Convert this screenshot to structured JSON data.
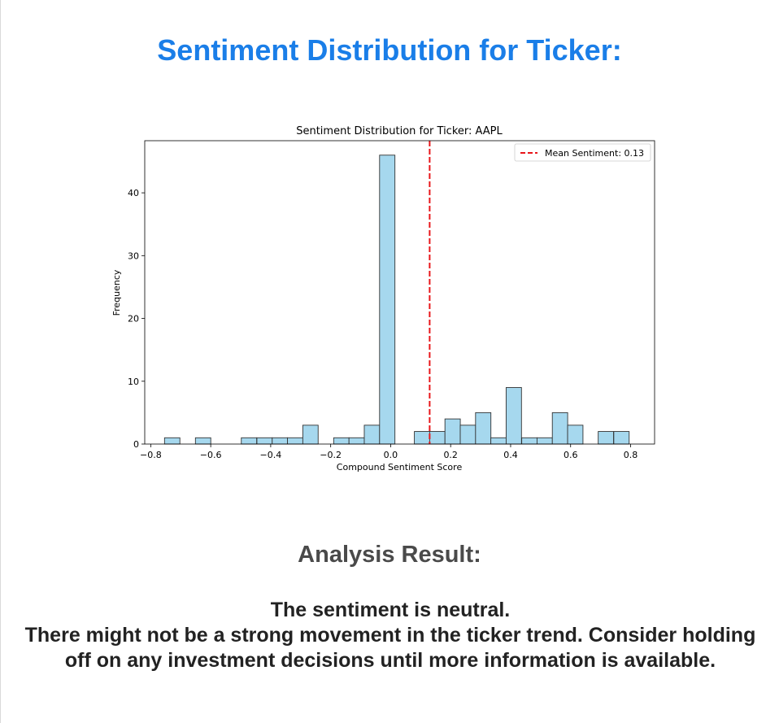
{
  "page": {
    "title": "Sentiment Distribution for Ticker:",
    "analysis_heading": "Analysis Result:",
    "result_line1": "The sentiment is neutral.",
    "result_line2": "There might not be a strong movement in the ticker trend. Consider holding off on any investment decisions until more information is available."
  },
  "chart_data": {
    "type": "bar",
    "title": "Sentiment Distribution for Ticker: AAPL",
    "xlabel": "Compound Sentiment Score",
    "ylabel": "Frequency",
    "xlim": [
      -0.82,
      0.88
    ],
    "ylim": [
      0,
      48.3
    ],
    "x_ticks": [
      -0.8,
      -0.6,
      -0.4,
      -0.2,
      0.0,
      0.2,
      0.4,
      0.6,
      0.8
    ],
    "x_tick_labels": [
      "−0.8",
      "−0.6",
      "−0.4",
      "−0.2",
      "0.0",
      "0.2",
      "0.4",
      "0.6",
      "0.8"
    ],
    "y_ticks": [
      0,
      10,
      20,
      30,
      40
    ],
    "y_tick_labels": [
      "0",
      "10",
      "20",
      "30",
      "40"
    ],
    "bin_width": 0.0512,
    "bins": [
      {
        "x0": -0.754,
        "count": 1
      },
      {
        "x0": -0.651,
        "count": 1
      },
      {
        "x0": -0.498,
        "count": 1
      },
      {
        "x0": -0.446,
        "count": 1
      },
      {
        "x0": -0.395,
        "count": 1
      },
      {
        "x0": -0.344,
        "count": 1
      },
      {
        "x0": -0.293,
        "count": 3
      },
      {
        "x0": -0.19,
        "count": 1
      },
      {
        "x0": -0.139,
        "count": 1
      },
      {
        "x0": -0.088,
        "count": 3
      },
      {
        "x0": -0.037,
        "count": 46
      },
      {
        "x0": 0.079,
        "count": 2
      },
      {
        "x0": 0.13,
        "count": 2
      },
      {
        "x0": 0.181,
        "count": 4
      },
      {
        "x0": 0.232,
        "count": 3
      },
      {
        "x0": 0.283,
        "count": 5
      },
      {
        "x0": 0.334,
        "count": 1
      },
      {
        "x0": 0.385,
        "count": 9
      },
      {
        "x0": 0.437,
        "count": 1
      },
      {
        "x0": 0.488,
        "count": 1
      },
      {
        "x0": 0.539,
        "count": 5
      },
      {
        "x0": 0.59,
        "count": 3
      },
      {
        "x0": 0.692,
        "count": 2
      },
      {
        "x0": 0.744,
        "count": 2
      }
    ],
    "bar_color": "#a6d8ee",
    "bar_edge_color": "#333333",
    "mean": 0.13,
    "mean_line_color": "#e8161a",
    "legend_label": "Mean Sentiment: 0.13",
    "legend_position": "upper right",
    "grid": false
  }
}
